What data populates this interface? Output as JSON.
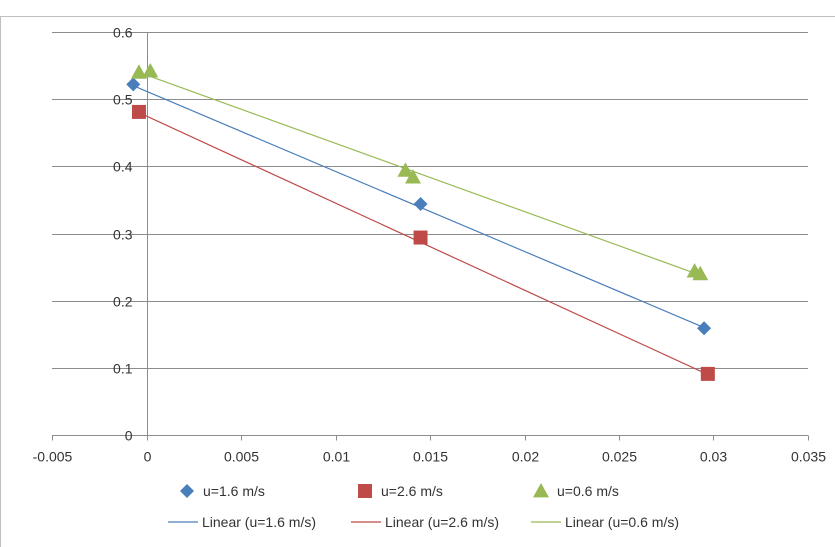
{
  "chart_data": {
    "type": "scatter",
    "title": "",
    "xlabel": "",
    "ylabel": "",
    "xlim": [
      -0.005,
      0.035
    ],
    "ylim": [
      0,
      0.6
    ],
    "x_ticks": [
      -0.005,
      0,
      0.005,
      0.01,
      0.015,
      0.02,
      0.025,
      0.03,
      0.035
    ],
    "x_tick_labels": [
      "-0.005",
      "0",
      "0.005",
      "0.01",
      "0.015",
      "0.02",
      "0.025",
      "0.03",
      "0.035"
    ],
    "y_ticks": [
      0,
      0.1,
      0.2,
      0.3,
      0.4,
      0.5,
      0.6
    ],
    "y_tick_labels": [
      "0",
      "0.1",
      "0.2",
      "0.3",
      "0.4",
      "0.5",
      "0.6"
    ],
    "grid": "horizontal",
    "legend_position": "bottom",
    "series": [
      {
        "name": "u=1.6 m/s",
        "marker": "diamond",
        "color": "#4a7ebb",
        "points": [
          [
            -0.0007,
            0.522
          ],
          [
            0.0145,
            0.344
          ],
          [
            0.0295,
            0.159
          ]
        ]
      },
      {
        "name": "u=2.6 m/s",
        "marker": "square",
        "color": "#be4b48",
        "points": [
          [
            -0.0004,
            0.481
          ],
          [
            0.0145,
            0.294
          ],
          [
            0.0297,
            0.091
          ]
        ]
      },
      {
        "name": "u=0.6 m/s",
        "marker": "triangle",
        "color": "#98b954",
        "points": [
          [
            -0.0004,
            0.54
          ],
          [
            0.0002,
            0.542
          ],
          [
            0.0137,
            0.394
          ],
          [
            0.0141,
            0.384
          ],
          [
            0.029,
            0.244
          ],
          [
            0.0293,
            0.24
          ]
        ]
      }
    ],
    "trendlines": [
      {
        "name": "Linear (u=1.6 m/s)",
        "color": "#4a7ebb",
        "from": [
          -0.0007,
          0.52
        ],
        "to": [
          0.0295,
          0.16
        ]
      },
      {
        "name": "Linear (u=2.6 m/s)",
        "color": "#be4b48",
        "from": [
          -0.0004,
          0.48
        ],
        "to": [
          0.0297,
          0.09
        ]
      },
      {
        "name": "Linear (u=0.6 m/s)",
        "color": "#98b954",
        "from": [
          -0.0004,
          0.54
        ],
        "to": [
          0.0293,
          0.238
        ]
      }
    ]
  }
}
